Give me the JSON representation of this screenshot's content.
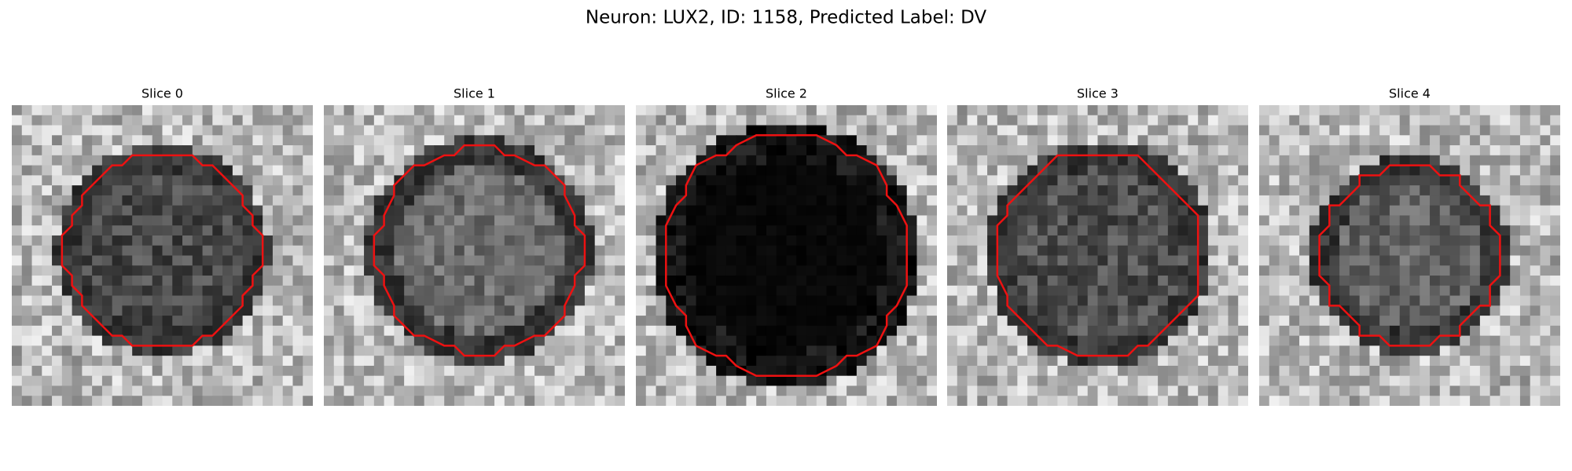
{
  "title": "Neuron: LUX2, ID: 1158, Predicted Label: DV",
  "panels": [
    {
      "title": "Slice 0"
    },
    {
      "title": "Slice 1"
    },
    {
      "title": "Slice 2"
    },
    {
      "title": "Slice 3"
    },
    {
      "title": "Slice 4"
    }
  ]
}
